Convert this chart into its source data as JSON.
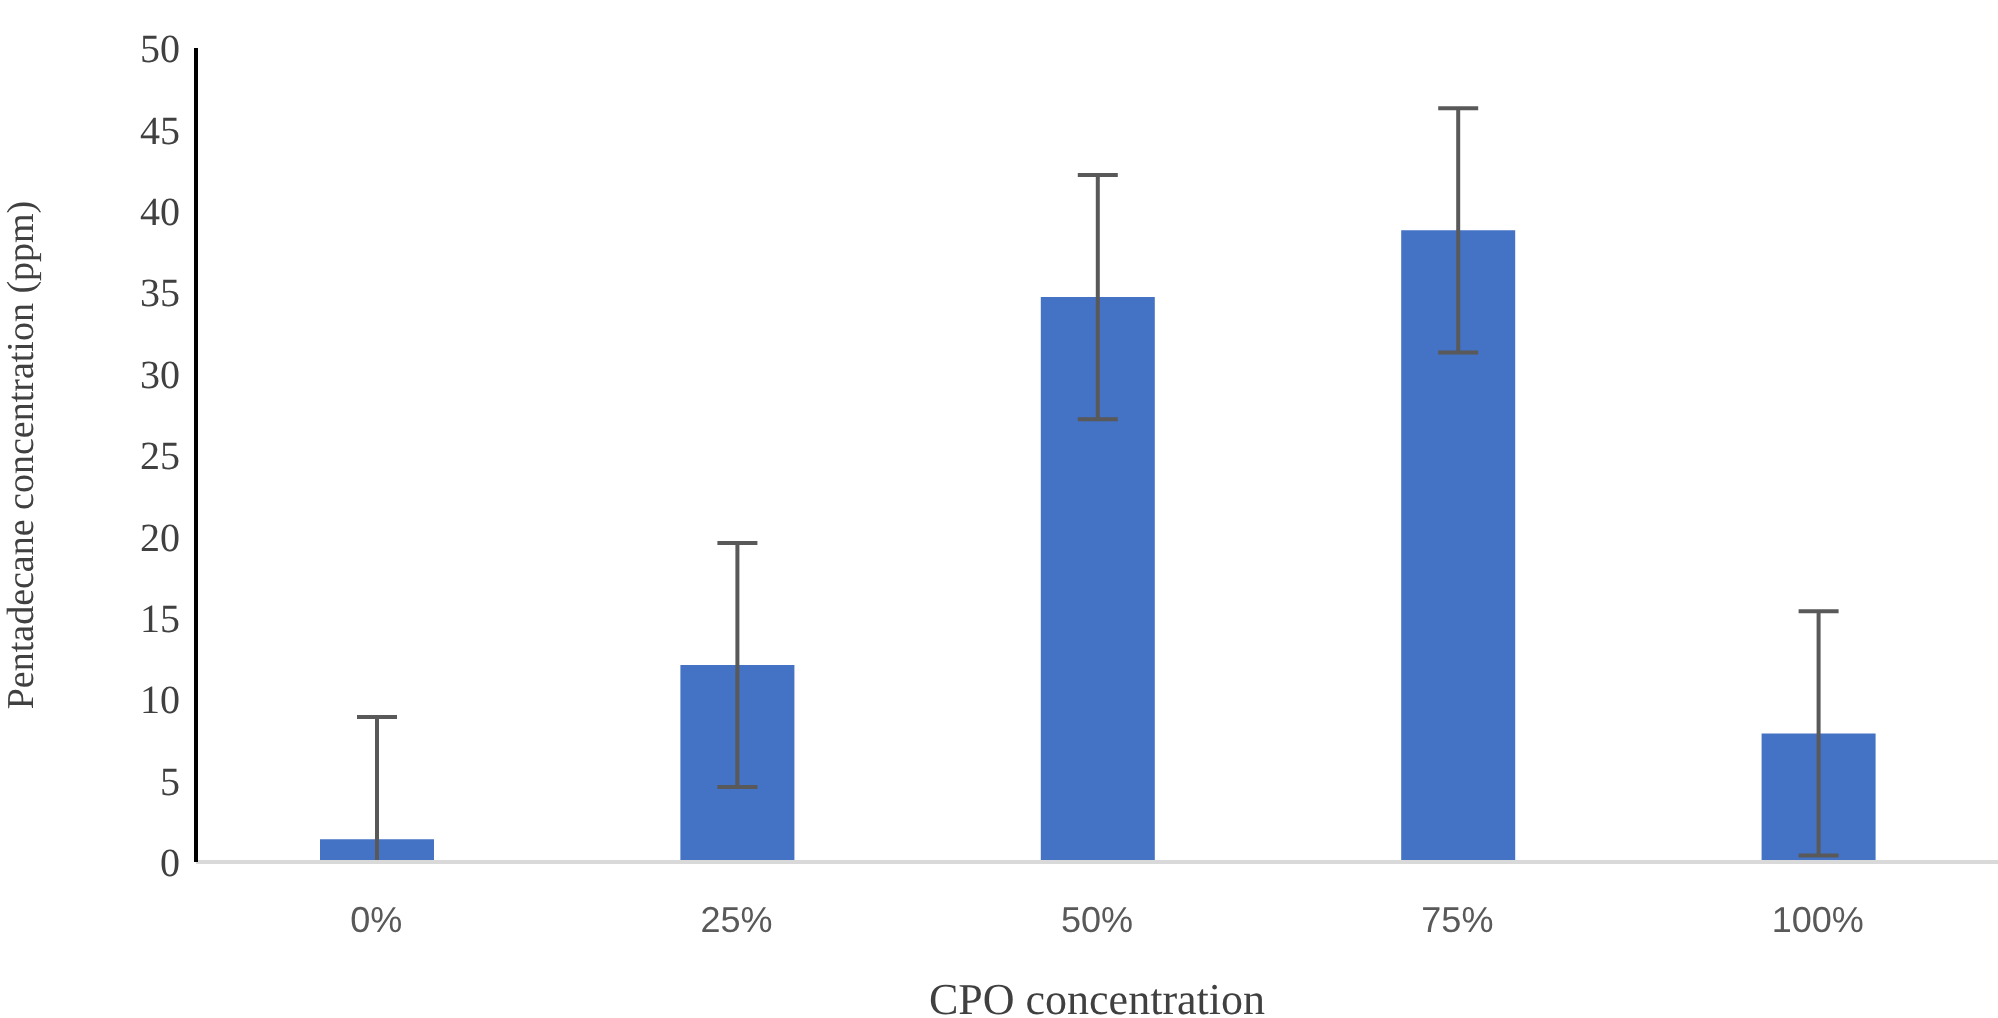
{
  "chart_data": {
    "type": "bar",
    "xlabel": "CPO concentration",
    "ylabel": "Pentadecane concentration  (ppm)",
    "categories": [
      "0%",
      "25%",
      "50%",
      "75%",
      "100%"
    ],
    "values": [
      1.4,
      12.1,
      34.7,
      38.8,
      7.9
    ],
    "errors": [
      [
        0,
        8.9
      ],
      7.5,
      7.5,
      7.5,
      7.5
    ],
    "color": "#4472c4",
    "ylim": [
      0,
      50
    ],
    "yticks": [
      0,
      5,
      10,
      15,
      20,
      25,
      30,
      35,
      40,
      45,
      50
    ],
    "grid": false,
    "legend": false
  }
}
